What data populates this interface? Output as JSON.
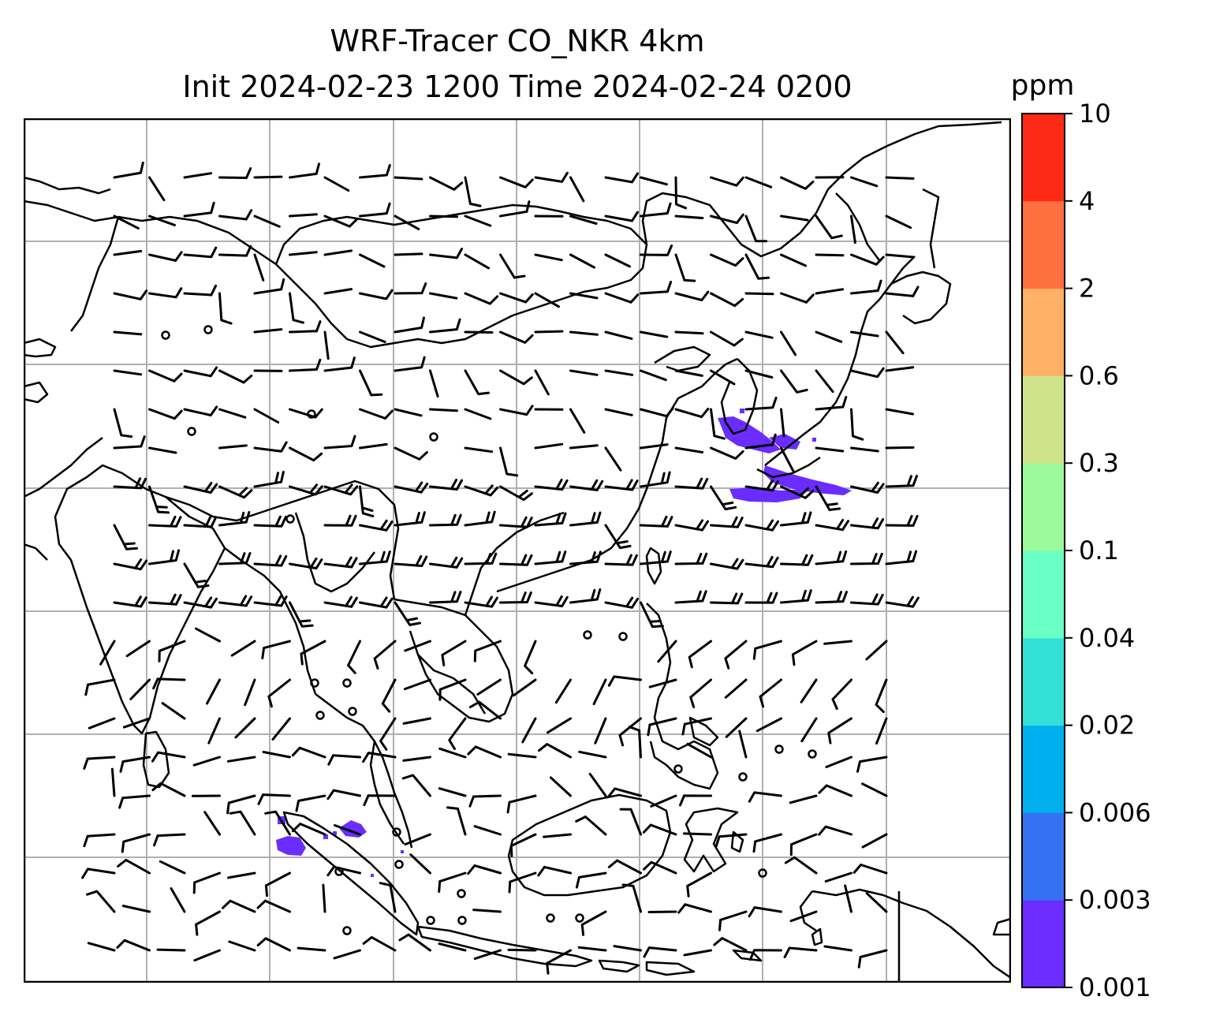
{
  "title": {
    "line1": "WRF-Tracer CO_NKR 4km",
    "line2": "Init 2024-02-23 1200 Time 2024-02-24 0200"
  },
  "colorbar": {
    "unit": "ppm",
    "levels": [
      "0.001",
      "0.003",
      "0.006",
      "0.02",
      "0.04",
      "0.1",
      "0.3",
      "0.6",
      "2",
      "4",
      "10"
    ],
    "colors": [
      "#6a2cff",
      "#3572f2",
      "#00b0ee",
      "#33e0d6",
      "#6affc4",
      "#9cf99c",
      "#cfe38a",
      "#ffb166",
      "#ff7040",
      "#ff2a16"
    ]
  },
  "colors": {
    "coastline": "#000000",
    "gridline": "#b0b0b0",
    "barb": "#000000",
    "tracer": "#6a2cff"
  }
}
